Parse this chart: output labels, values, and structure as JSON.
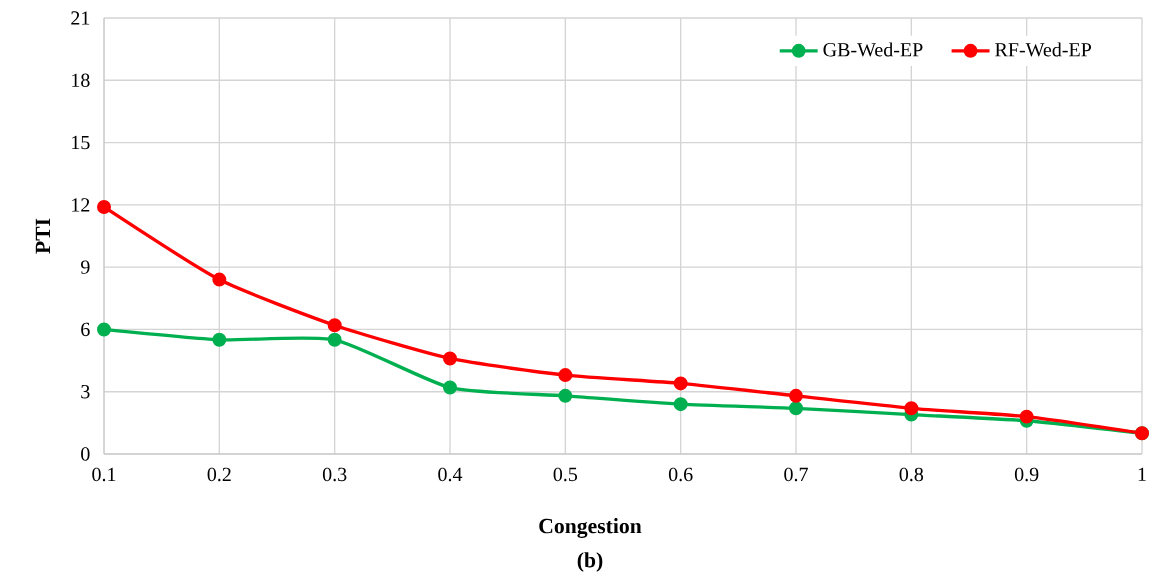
{
  "chart_data": {
    "type": "line",
    "xlabel": "Congestion",
    "ylabel": "PTI",
    "annotations": [
      "(b)"
    ],
    "x": [
      0.1,
      0.2,
      0.3,
      0.4,
      0.5,
      0.6,
      0.7,
      0.8,
      0.9,
      1
    ],
    "series": [
      {
        "name": "GB-Wed-EP",
        "color": "#00b050",
        "values": [
          6.0,
          5.5,
          5.5,
          3.2,
          2.8,
          2.4,
          2.2,
          1.9,
          1.6,
          1.0
        ]
      },
      {
        "name": "RF-Wed-EP",
        "color": "#ff0000",
        "values": [
          11.9,
          8.4,
          6.2,
          4.6,
          3.8,
          3.4,
          2.8,
          2.2,
          1.8,
          1.0
        ]
      }
    ],
    "xlim": [
      0.1,
      1
    ],
    "ylim": [
      0,
      21
    ],
    "xticks": [
      {
        "value": 0.1,
        "label": "0.1"
      },
      {
        "value": 0.2,
        "label": "0.2"
      },
      {
        "value": 0.3,
        "label": "0.3"
      },
      {
        "value": 0.4,
        "label": "0.4"
      },
      {
        "value": 0.5,
        "label": "0.5"
      },
      {
        "value": 0.6,
        "label": "0.6"
      },
      {
        "value": 0.7,
        "label": "0.7"
      },
      {
        "value": 0.8,
        "label": "0.8"
      },
      {
        "value": 0.9,
        "label": "0.9"
      },
      {
        "value": 1,
        "label": "1"
      }
    ],
    "yticks": [
      0,
      3,
      6,
      9,
      12,
      15,
      18,
      21
    ],
    "grid": true,
    "legend": "top right",
    "marker": "circle",
    "line_style": "solid"
  }
}
